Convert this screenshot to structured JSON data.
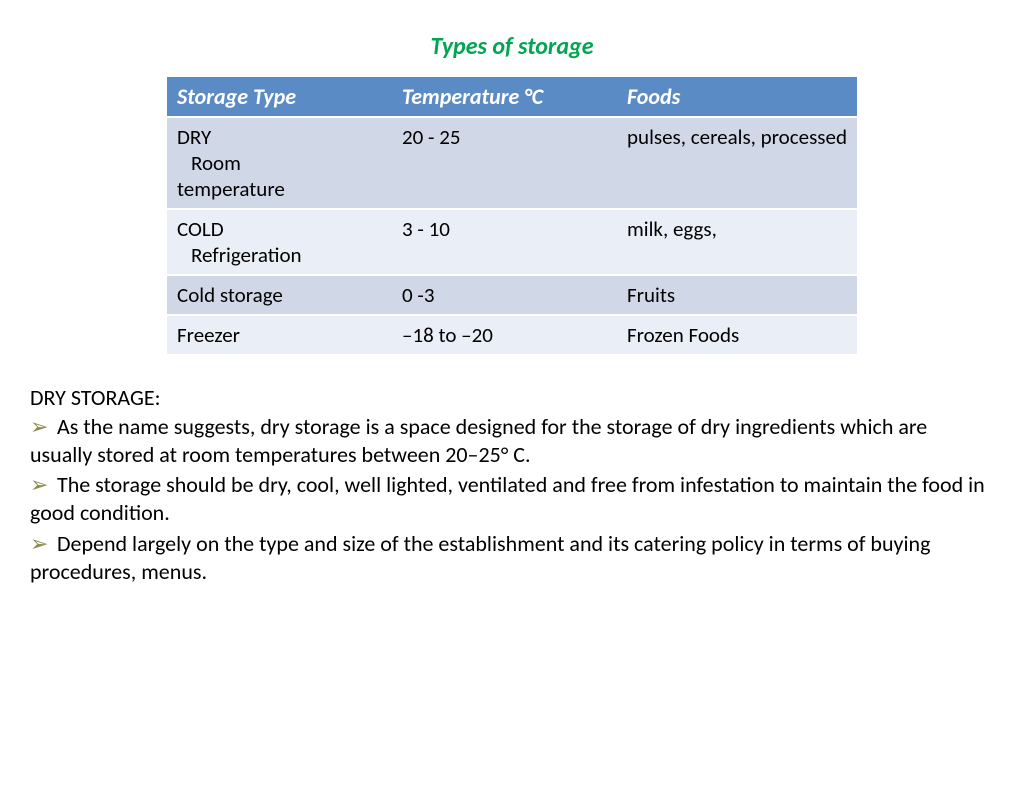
{
  "title": {
    "text": "Types of storage",
    "color": "#00a651",
    "fontsize": 24
  },
  "table": {
    "header_bg": "#5b8bc4",
    "header_text_color": "#ffffff",
    "row_bg_alt": [
      "#d0d8e8",
      "#eaeef7"
    ],
    "cell_fontsize": 21,
    "header_fontsize": 22,
    "columns": [
      "Storage Type",
      "Temperature °C",
      "Foods"
    ],
    "rows": [
      {
        "storage_lines": [
          "DRY",
          "  Room",
          "temperature"
        ],
        "temperature": "20 - 25",
        "foods": "pulses, cereals, processed"
      },
      {
        "storage_lines": [
          "COLD",
          "  Refrigeration"
        ],
        "temperature": "3 - 10",
        "foods": "milk, eggs,"
      },
      {
        "storage_lines": [
          "Cold storage"
        ],
        "temperature": "0 -3",
        "foods": "Fruits"
      },
      {
        "storage_lines": [
          "Freezer"
        ],
        "temperature": "–18 to –20",
        "foods": "Frozen Foods"
      }
    ]
  },
  "section": {
    "title": "DRY STORAGE:",
    "title_fontsize": 22,
    "body_fontsize": 22,
    "arrow_glyph": "➢",
    "arrow_color": "#8a8a4a",
    "bullets": [
      "As the name suggests, dry storage is a space designed for the storage of dry ingredients which are usually stored at room temperatures between 20–25° C.",
      "The storage should be dry, cool, well lighted, ventilated and free from infestation to maintain the food in good condition.",
      "Depend largely on the type and size of the establishment and its catering policy in terms of buying procedures, menus."
    ]
  }
}
